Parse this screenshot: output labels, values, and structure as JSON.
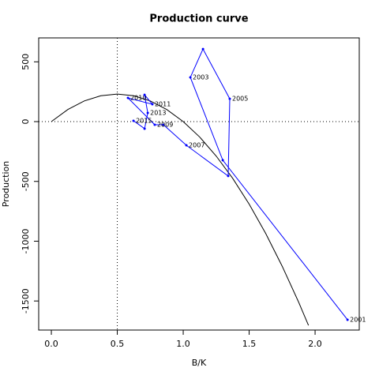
{
  "chart_data": {
    "type": "line",
    "title": "Production curve",
    "x_label": "B/K",
    "y_label": "Production",
    "xlim": [
      -0.096,
      2.335
    ],
    "ylim": [
      -1743,
      700
    ],
    "xticks": [
      {
        "value": 0,
        "label": "0.0"
      },
      {
        "value": 0.5,
        "label": "0.5"
      },
      {
        "value": 1,
        "label": "1.0"
      },
      {
        "value": 1.5,
        "label": "1.5"
      },
      {
        "value": 2,
        "label": "2.0"
      }
    ],
    "yticks": [
      500,
      0,
      -500,
      -1000,
      -1500
    ],
    "vline": 0.5,
    "hline": 0,
    "series": [
      {
        "color": "#000000",
        "x": [
          0,
          0.125,
          0.25,
          0.375,
          0.5,
          0.625,
          0.75,
          0.875,
          1,
          1.125,
          1.25,
          1.375,
          1.5,
          1.625,
          1.75,
          1.875,
          1.95
        ],
        "values": [
          0,
          101,
          173,
          216,
          230,
          216,
          173,
          101,
          0,
          -129,
          -288,
          -474,
          -690,
          -934,
          -1208,
          -1509,
          -1704
        ]
      },
      {
        "color": "#0000ff",
        "x": [
          2.246,
          1.3,
          1.054,
          1.15,
          1.353,
          1.341,
          1.024,
          0.85,
          0.784,
          0.581,
          0.766,
          0.707,
          0.731,
          0.707,
          0.623
        ],
        "values": [
          -1657,
          -323,
          370,
          607,
          191,
          -455,
          -198,
          -26,
          -26,
          198,
          145,
          224,
          73,
          -59,
          7
        ],
        "point_labels": [
          "2001",
          null,
          "2003",
          null,
          "2005",
          null,
          "2007",
          null,
          "2009",
          "2010",
          "2011",
          null,
          "2013",
          null,
          "2015"
        ]
      }
    ]
  }
}
